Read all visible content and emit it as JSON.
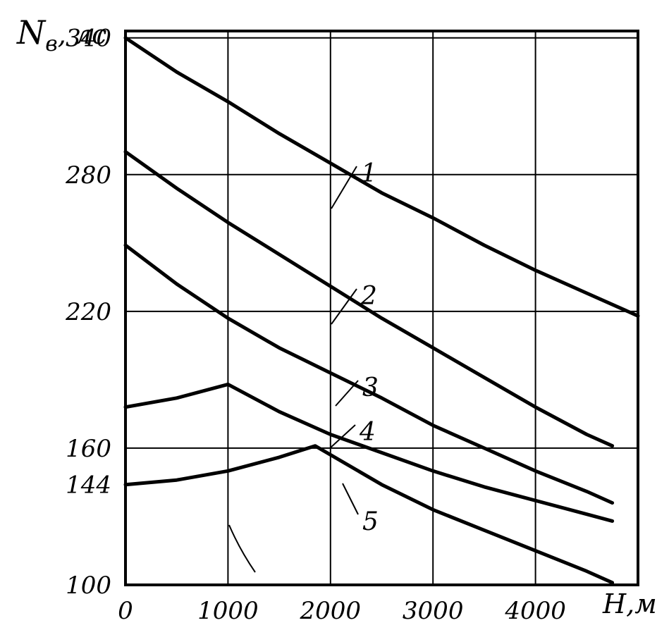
{
  "chart_data": {
    "type": "line",
    "title": "",
    "ylabel_main": "N",
    "ylabel_sub": "в",
    "ylabel_unit": ", лс",
    "xlabel": "H,м",
    "xlim": [
      0,
      5000
    ],
    "ylim": [
      100,
      340
    ],
    "x_ticks": [
      "0",
      "1000",
      "2000",
      "3000",
      "4000"
    ],
    "y_ticks": [
      "100",
      "144",
      "160",
      "220",
      "280",
      "340"
    ],
    "grid": true,
    "series": [
      {
        "name": "1",
        "x": [
          0,
          500,
          1000,
          1500,
          2000,
          2500,
          3000,
          3500,
          4000,
          4500,
          5000
        ],
        "y": [
          340,
          325,
          312,
          298,
          285,
          272,
          261,
          249,
          238,
          228,
          218
        ]
      },
      {
        "name": "2",
        "x": [
          0,
          500,
          1000,
          1500,
          2000,
          2500,
          3000,
          3500,
          4000,
          4500,
          4750
        ],
        "y": [
          290,
          274,
          259,
          245,
          231,
          217,
          204,
          191,
          178,
          166,
          161
        ]
      },
      {
        "name": "3",
        "x": [
          0,
          500,
          1000,
          1500,
          2000,
          2500,
          3000,
          3500,
          4000,
          4500,
          4750
        ],
        "y": [
          249,
          232,
          217,
          204,
          193,
          182,
          170,
          160,
          150,
          141,
          136
        ]
      },
      {
        "name": "4",
        "x": [
          0,
          500,
          1000,
          1500,
          2000,
          2500,
          3000,
          3500,
          4000,
          4500,
          4750
        ],
        "y": [
          178,
          182,
          188,
          176,
          166,
          158,
          150,
          143,
          137,
          131,
          128
        ]
      },
      {
        "name": "5",
        "x": [
          0,
          500,
          1000,
          1500,
          1850,
          2500,
          3000,
          3500,
          4000,
          4500,
          4750
        ],
        "y": [
          144,
          146,
          150,
          156,
          161,
          144,
          133,
          124,
          115,
          106,
          101
        ]
      }
    ]
  }
}
